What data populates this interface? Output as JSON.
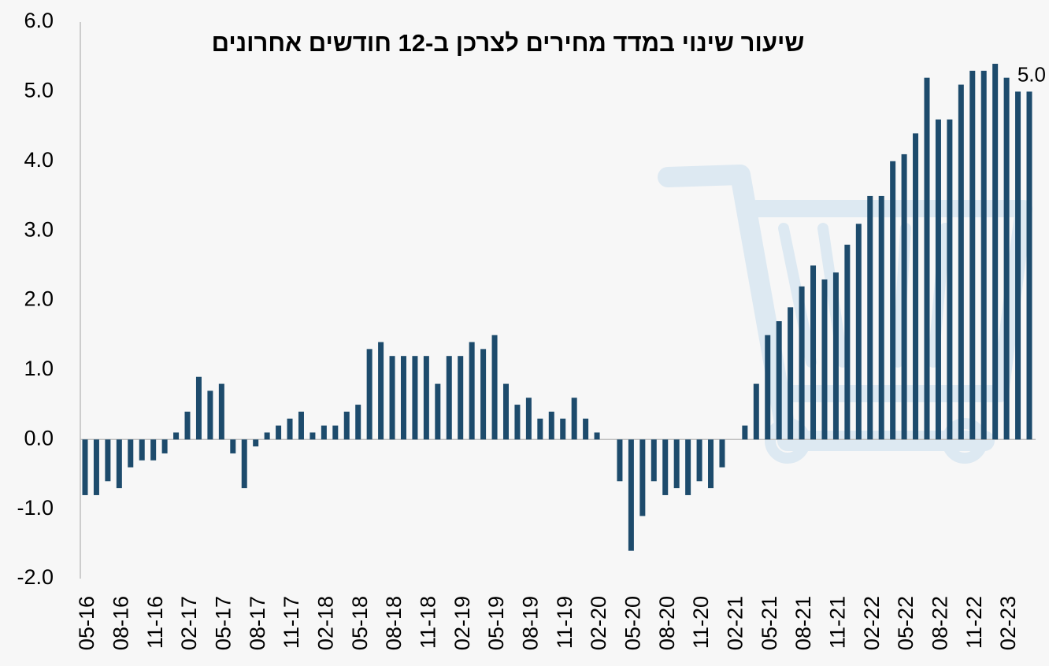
{
  "chart_data": {
    "type": "bar",
    "title": "שיעור שינוי במדד מחירים לצרכן ב-12 חודשים אחרונים",
    "categories": [
      "05-16",
      null,
      null,
      "08-16",
      null,
      null,
      "11-16",
      null,
      null,
      "02-17",
      null,
      null,
      "05-17",
      null,
      null,
      "08-17",
      null,
      null,
      "11-17",
      null,
      null,
      "02-18",
      null,
      null,
      "05-18",
      null,
      null,
      "08-18",
      null,
      null,
      "11-18",
      null,
      null,
      "02-19",
      null,
      null,
      "05-19",
      null,
      null,
      "08-19",
      null,
      null,
      "11-19",
      null,
      null,
      "02-20",
      null,
      null,
      "05-20",
      null,
      null,
      "08-20",
      null,
      null,
      "11-20",
      null,
      null,
      "02-21",
      null,
      null,
      "05-21",
      null,
      null,
      "08-21",
      null,
      null,
      "11-21",
      null,
      null,
      "02-22",
      null,
      null,
      "05-22",
      null,
      null,
      "08-22",
      null,
      null,
      "11-22",
      null,
      null,
      "02-23",
      null,
      null
    ],
    "values": [
      -0.8,
      -0.8,
      -0.6,
      -0.7,
      -0.4,
      -0.3,
      -0.3,
      -0.2,
      0.1,
      0.4,
      0.9,
      0.7,
      0.8,
      -0.2,
      -0.7,
      -0.1,
      0.1,
      0.2,
      0.3,
      0.4,
      0.1,
      0.2,
      0.2,
      0.4,
      0.5,
      1.3,
      1.4,
      1.2,
      1.2,
      1.2,
      1.2,
      0.8,
      1.2,
      1.2,
      1.4,
      1.3,
      1.5,
      0.8,
      0.5,
      0.6,
      0.3,
      0.4,
      0.3,
      0.6,
      0.3,
      0.1,
      0,
      -0.6,
      -1.6,
      -1.1,
      -0.6,
      -0.8,
      -0.7,
      -0.8,
      -0.6,
      -0.7,
      -0.4,
      0,
      0.2,
      0.8,
      1.5,
      1.7,
      1.9,
      2.2,
      2.5,
      2.3,
      2.4,
      2.8,
      3.1,
      3.5,
      3.5,
      4.0,
      4.1,
      4.4,
      5.2,
      4.6,
      4.6,
      5.1,
      5.3,
      5.3,
      5.4,
      5.2,
      5.0,
      5.0
    ],
    "value_labels": [
      null,
      null,
      null,
      null,
      null,
      null,
      null,
      null,
      null,
      null,
      null,
      null,
      null,
      null,
      null,
      null,
      null,
      null,
      null,
      null,
      null,
      null,
      null,
      null,
      null,
      null,
      null,
      null,
      null,
      null,
      null,
      null,
      null,
      null,
      null,
      null,
      null,
      null,
      null,
      null,
      null,
      null,
      null,
      null,
      null,
      null,
      null,
      null,
      null,
      null,
      null,
      null,
      null,
      null,
      null,
      null,
      null,
      null,
      null,
      null,
      null,
      null,
      null,
      null,
      null,
      null,
      null,
      null,
      null,
      null,
      null,
      null,
      null,
      null,
      null,
      null,
      null,
      null,
      null,
      null,
      null,
      null,
      null,
      "5.0"
    ],
    "color": "#1d4b6c",
    "ylim": [
      -2,
      6
    ],
    "yticks": [
      {
        "value": -2,
        "label": "-2.0"
      },
      {
        "value": -1,
        "label": "-1.0"
      },
      {
        "value": 0,
        "label": "0.0"
      },
      {
        "value": 1,
        "label": "1.0"
      },
      {
        "value": 2,
        "label": "2.0"
      },
      {
        "value": 3,
        "label": "3.0"
      },
      {
        "value": 4,
        "label": "4.0"
      },
      {
        "value": 5,
        "label": "5.0"
      },
      {
        "value": 6,
        "label": "6.0"
      }
    ],
    "grid": false
  }
}
